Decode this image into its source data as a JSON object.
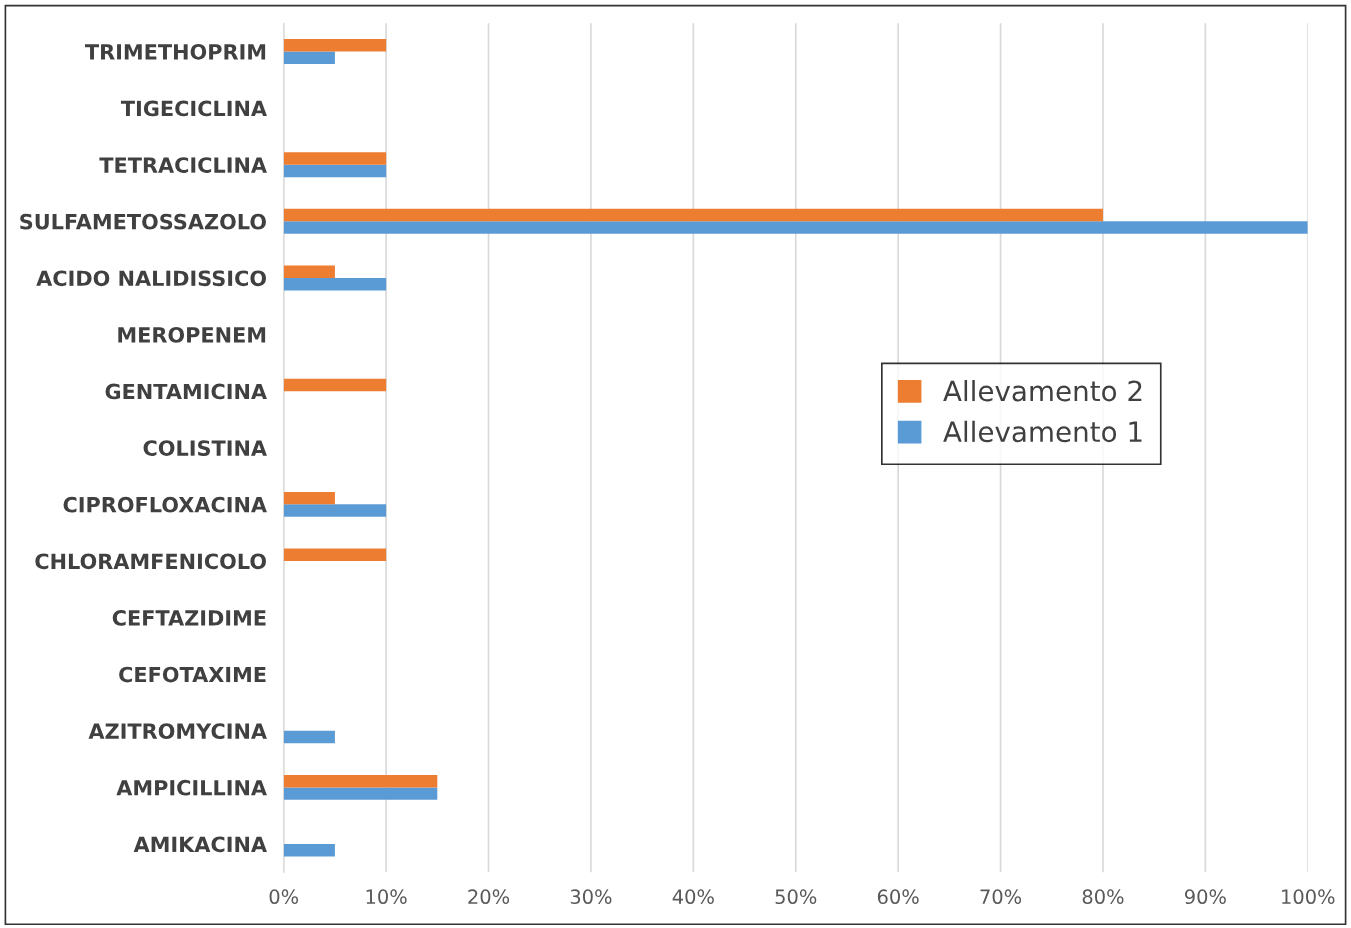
{
  "chart_data": {
    "type": "bar",
    "orientation": "horizontal",
    "categories": [
      "TRIMETHOPRIM",
      "TIGECICLINA",
      "TETRACICLINA",
      "SULFAMETOSSAZOLO",
      "ACIDO NALIDISSICO",
      "MEROPENEM",
      "GENTAMICINA",
      "COLISTINA",
      "CIPROFLOXACINA",
      "CHLORAMFENICOLO",
      "CEFTAZIDIME",
      "CEFOTAXIME",
      "AZITROMYCINA",
      "AMPICILLINA",
      "AMIKACINA"
    ],
    "series": [
      {
        "name": "Allevamento 1",
        "color": "#5b9bd5",
        "values": [
          5,
          0,
          10,
          100,
          10,
          0,
          0,
          0,
          10,
          0,
          0,
          0,
          5,
          15,
          5
        ]
      },
      {
        "name": "Allevamento 2",
        "color": "#ed7d31",
        "values": [
          10,
          0,
          10,
          80,
          5,
          0,
          10,
          0,
          5,
          10,
          0,
          0,
          0,
          15,
          0
        ]
      }
    ],
    "xlim": [
      0,
      100
    ],
    "xticks": [
      {
        "value": 0,
        "label": "0%"
      },
      {
        "value": 10,
        "label": "10%"
      },
      {
        "value": 20,
        "label": "20%"
      },
      {
        "value": 30,
        "label": "30%"
      },
      {
        "value": 40,
        "label": "40%"
      },
      {
        "value": 50,
        "label": "50%"
      },
      {
        "value": 60,
        "label": "60%"
      },
      {
        "value": 70,
        "label": "70%"
      },
      {
        "value": 80,
        "label": "80%"
      },
      {
        "value": 90,
        "label": "90%"
      },
      {
        "value": 100,
        "label": "100%"
      }
    ],
    "grid": "x",
    "legend": "center right"
  }
}
